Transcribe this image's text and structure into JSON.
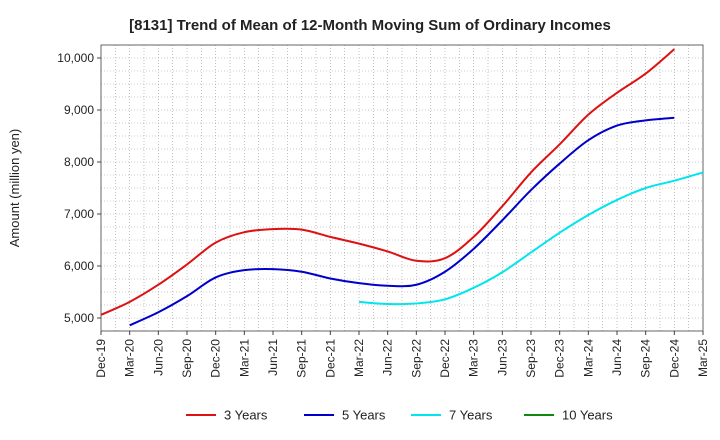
{
  "chart_data": {
    "type": "line",
    "title": "[8131]  Trend of Mean of 12-Month Moving Sum of Ordinary Incomes",
    "xlabel": "",
    "ylabel": "Amount (million yen)",
    "ylim": [
      4750,
      10250
    ],
    "yticks": [
      5000,
      6000,
      7000,
      8000,
      9000,
      10000
    ],
    "ytick_labels": [
      "5,000",
      "6,000",
      "7,000",
      "8,000",
      "9,000",
      "10,000"
    ],
    "x_start": "Dec-19",
    "x_tick_labels": [
      "Dec-19",
      "Mar-20",
      "Jun-20",
      "Sep-20",
      "Dec-20",
      "Mar-21",
      "Jun-21",
      "Sep-21",
      "Dec-21",
      "Mar-22",
      "Jun-22",
      "Sep-22",
      "Dec-22",
      "Mar-23",
      "Jun-23",
      "Sep-23",
      "Dec-23",
      "Mar-24",
      "Jun-24",
      "Sep-24",
      "Dec-24",
      "Mar-25"
    ],
    "grid": true,
    "legend_position": "bottom",
    "series": [
      {
        "name": "3 Years",
        "color": "#dd1111",
        "start_index": 0,
        "values": [
          5060,
          5310,
          5640,
          6030,
          6450,
          6650,
          6710,
          6700,
          6560,
          6430,
          6280,
          6100,
          6150,
          6560,
          7150,
          7800,
          8340,
          8910,
          9330,
          9700,
          10170
        ]
      },
      {
        "name": "5 Years",
        "color": "#0000cc",
        "start_index": 1,
        "values": [
          4860,
          5110,
          5420,
          5780,
          5920,
          5940,
          5890,
          5760,
          5670,
          5620,
          5640,
          5890,
          6330,
          6880,
          7460,
          7970,
          8420,
          8700,
          8800,
          8850
        ]
      },
      {
        "name": "7 Years",
        "color": "#00e5ee",
        "start_index": 9,
        "values": [
          5310,
          5270,
          5280,
          5360,
          5580,
          5880,
          6260,
          6640,
          6980,
          7270,
          7500,
          7640,
          7800
        ]
      },
      {
        "name": "10 Years",
        "color": "#118811",
        "start_index": 0,
        "values": []
      }
    ]
  }
}
